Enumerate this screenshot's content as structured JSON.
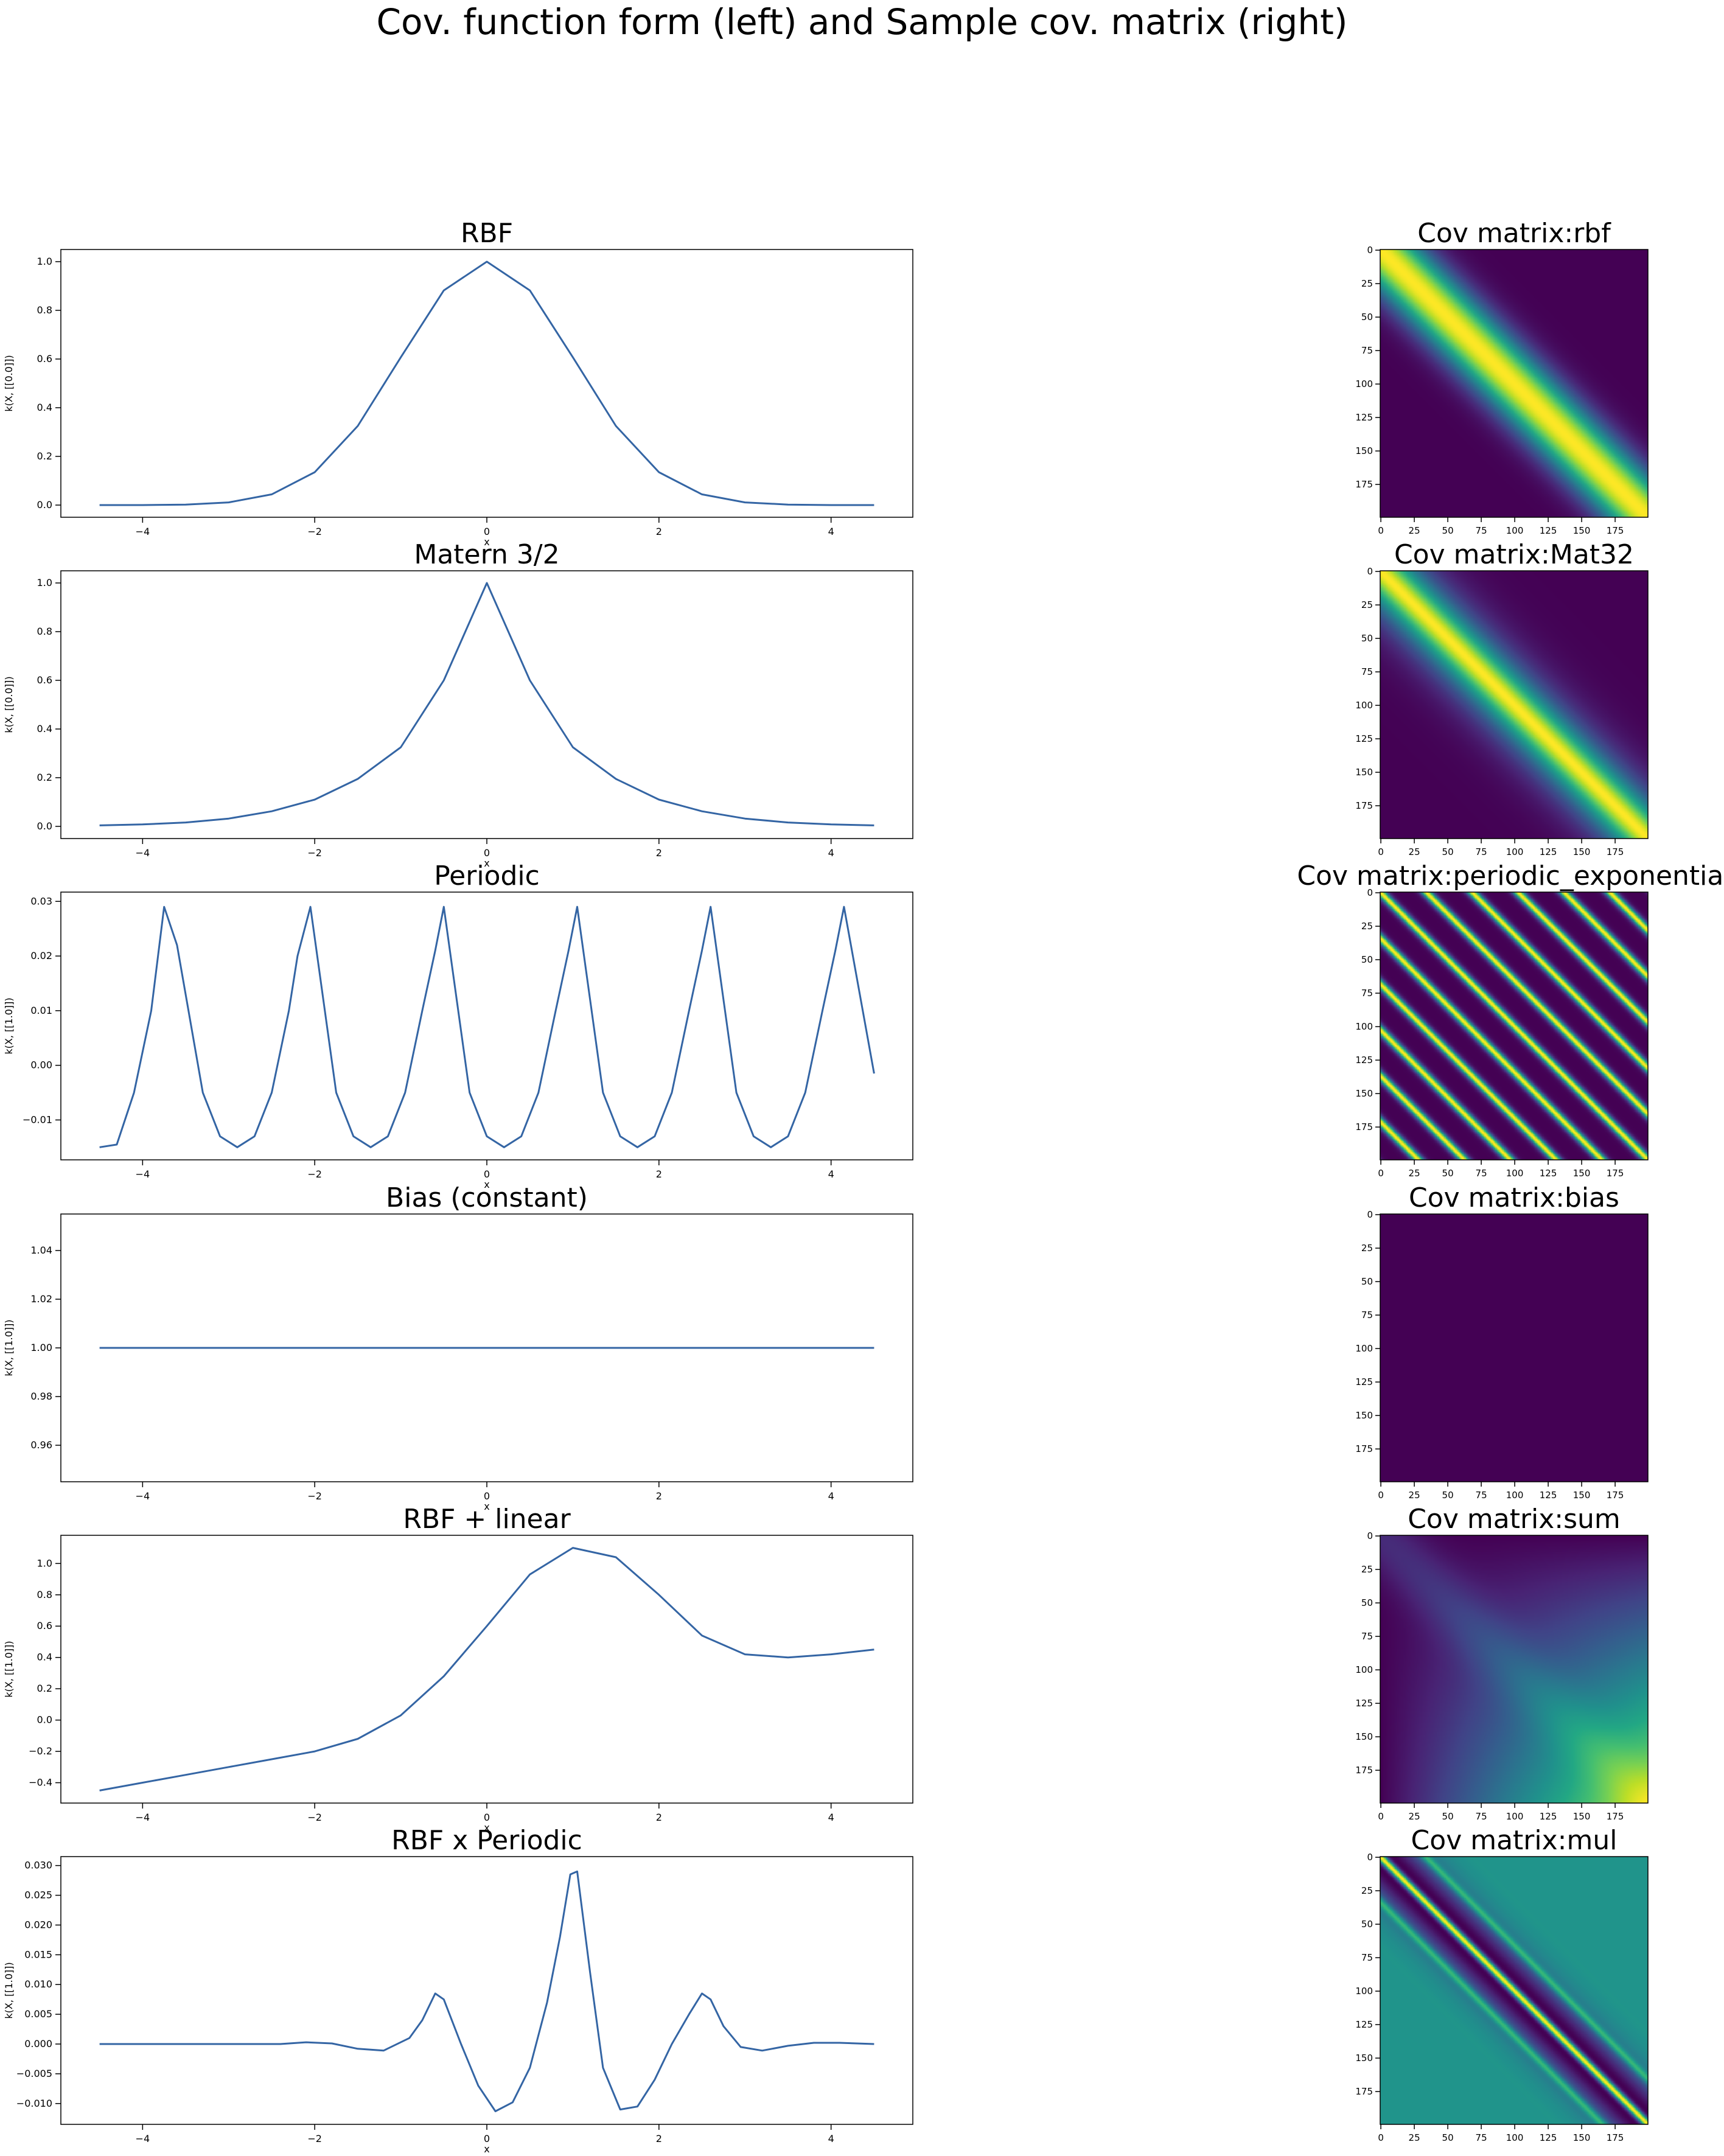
{
  "figure": {
    "suptitle": "Cov. function form (left) and Sample cov. matrix (right)"
  },
  "colors": {
    "line": "#3465a4",
    "axis": "#000000",
    "viridis_low": "#440154",
    "viridis_high": "#fde725"
  },
  "chart_data": [
    {
      "type": "line",
      "title": "RBF",
      "xlabel": "x",
      "ylabel": "k(X, [[0.0]])",
      "x_range": [
        -4.5,
        4.5
      ],
      "xlim": [
        -4.95,
        4.95
      ],
      "ylim": [
        -0.05,
        1.05
      ],
      "xticks": [
        -4,
        -2,
        0,
        2,
        4
      ],
      "yticks": [
        0.0,
        0.2,
        0.4,
        0.6,
        0.8,
        1.0
      ],
      "ytick_labels": [
        "0.0",
        "0.2",
        "0.4",
        "0.6",
        "0.8",
        "1.0"
      ],
      "x": [
        -4.5,
        -4.0,
        -3.5,
        -3.0,
        -2.5,
        -2.0,
        -1.5,
        -1.0,
        -0.5,
        0.0,
        0.5,
        1.0,
        1.5,
        2.0,
        2.5,
        3.0,
        3.5,
        4.0,
        4.5
      ],
      "y": [
        0.0,
        0.0,
        0.002,
        0.011,
        0.044,
        0.135,
        0.325,
        0.607,
        0.882,
        1.0,
        0.882,
        0.607,
        0.325,
        0.135,
        0.044,
        0.011,
        0.002,
        0.0,
        0.0
      ]
    },
    {
      "type": "line",
      "title": "Matern 3/2",
      "xlabel": "x",
      "ylabel": "k(X, [[0.0]])",
      "x_range": [
        -4.5,
        4.5
      ],
      "xlim": [
        -4.95,
        4.95
      ],
      "ylim": [
        -0.05,
        1.05
      ],
      "xticks": [
        -4,
        -2,
        0,
        2,
        4
      ],
      "yticks": [
        0.0,
        0.2,
        0.4,
        0.6,
        0.8,
        1.0
      ],
      "ytick_labels": [
        "0.0",
        "0.2",
        "0.4",
        "0.6",
        "0.8",
        "1.0"
      ],
      "x": [
        -4.5,
        -4.0,
        -3.5,
        -3.0,
        -2.5,
        -2.0,
        -1.5,
        -1.0,
        -0.5,
        0.0,
        0.5,
        1.0,
        1.5,
        2.0,
        2.5,
        3.0,
        3.5,
        4.0,
        4.5
      ],
      "y": [
        0.004,
        0.008,
        0.016,
        0.032,
        0.062,
        0.11,
        0.195,
        0.325,
        0.6,
        1.0,
        0.6,
        0.325,
        0.195,
        0.11,
        0.062,
        0.032,
        0.016,
        0.008,
        0.004
      ]
    },
    {
      "type": "line",
      "title": "Periodic",
      "xlabel": "x",
      "ylabel": "k(X, [[1.0]])",
      "x_range": [
        -4.5,
        4.5
      ],
      "xlim": [
        -4.95,
        4.95
      ],
      "ylim": [
        -0.0173,
        0.0317
      ],
      "xticks": [
        -4,
        -2,
        0,
        2,
        4
      ],
      "yticks": [
        -0.01,
        0.0,
        0.01,
        0.02,
        0.03
      ],
      "ytick_labels": [
        "−0.01",
        "0.00",
        "0.01",
        "0.02",
        "0.03"
      ],
      "x": [
        -4.5,
        -4.3,
        -4.1,
        -3.9,
        -3.75,
        -3.6,
        -3.3,
        -3.1,
        -2.9,
        -2.7,
        -2.5,
        -2.3,
        -2.2,
        -2.05,
        -1.75,
        -1.55,
        -1.35,
        -1.15,
        -0.95,
        -0.75,
        -0.6,
        -0.5,
        -0.2,
        0.0,
        0.2,
        0.4,
        0.6,
        0.8,
        0.95,
        1.05,
        1.35,
        1.55,
        1.75,
        1.95,
        2.15,
        2.35,
        2.5,
        2.6,
        2.9,
        3.1,
        3.3,
        3.5,
        3.7,
        3.9,
        4.05,
        4.15,
        4.5
      ],
      "y": [
        -0.015,
        -0.0145,
        -0.005,
        0.01,
        0.029,
        0.022,
        -0.005,
        -0.013,
        -0.015,
        -0.013,
        -0.005,
        0.01,
        0.02,
        0.029,
        -0.005,
        -0.013,
        -0.015,
        -0.013,
        -0.005,
        0.01,
        0.021,
        0.029,
        -0.005,
        -0.013,
        -0.015,
        -0.013,
        -0.005,
        0.01,
        0.021,
        0.029,
        -0.005,
        -0.013,
        -0.015,
        -0.013,
        -0.005,
        0.01,
        0.021,
        0.029,
        -0.005,
        -0.013,
        -0.015,
        -0.013,
        -0.005,
        0.01,
        0.021,
        0.029,
        -0.0015
      ]
    },
    {
      "type": "line",
      "title": "Bias (constant)",
      "xlabel": "x",
      "ylabel": "k(X, [[1.0]])",
      "x_range": [
        -4.5,
        4.5
      ],
      "xlim": [
        -4.95,
        4.95
      ],
      "ylim": [
        0.945,
        1.055
      ],
      "xticks": [
        -4,
        -2,
        0,
        2,
        4
      ],
      "yticks": [
        0.96,
        0.98,
        1.0,
        1.02,
        1.04
      ],
      "ytick_labels": [
        "0.96",
        "0.98",
        "1.00",
        "1.02",
        "1.04"
      ],
      "x": [
        -4.5,
        4.5
      ],
      "y": [
        1.0,
        1.0
      ]
    },
    {
      "type": "line",
      "title": "RBF + linear",
      "xlabel": "x",
      "ylabel": "k(X, [[1.0]])",
      "x_range": [
        -4.5,
        4.5
      ],
      "xlim": [
        -4.95,
        4.95
      ],
      "ylim": [
        -0.53,
        1.18
      ],
      "xticks": [
        -4,
        -2,
        0,
        2,
        4
      ],
      "yticks": [
        -0.4,
        -0.2,
        0.0,
        0.2,
        0.4,
        0.6,
        0.8,
        1.0
      ],
      "ytick_labels": [
        "−0.4",
        "−0.2",
        "0.0",
        "0.2",
        "0.4",
        "0.6",
        "0.8",
        "1.0"
      ],
      "x": [
        -4.5,
        -4.0,
        -3.5,
        -3.0,
        -2.5,
        -2.0,
        -1.5,
        -1.0,
        -0.5,
        0.0,
        0.5,
        1.0,
        1.5,
        2.0,
        2.5,
        3.0,
        3.5,
        4.0,
        4.5
      ],
      "y": [
        -0.45,
        -0.4,
        -0.35,
        -0.3,
        -0.25,
        -0.2,
        -0.12,
        0.03,
        0.28,
        0.6,
        0.93,
        1.1,
        1.04,
        0.8,
        0.54,
        0.42,
        0.4,
        0.42,
        0.45
      ]
    },
    {
      "type": "line",
      "title": "RBF x Periodic",
      "xlabel": "x",
      "ylabel": "k(X, [[1.0]])",
      "x_range": [
        -4.5,
        4.5
      ],
      "xlim": [
        -4.95,
        4.95
      ],
      "ylim": [
        -0.0135,
        0.0315
      ],
      "xticks": [
        -4,
        -2,
        0,
        2,
        4
      ],
      "yticks": [
        -0.01,
        -0.005,
        0.0,
        0.005,
        0.01,
        0.015,
        0.02,
        0.025,
        0.03
      ],
      "ytick_labels": [
        "−0.010",
        "−0.005",
        "0.000",
        "0.005",
        "0.010",
        "0.015",
        "0.020",
        "0.025",
        "0.030"
      ],
      "x": [
        -4.5,
        -3.0,
        -2.4,
        -2.1,
        -1.8,
        -1.5,
        -1.2,
        -0.9,
        -0.75,
        -0.6,
        -0.5,
        -0.3,
        -0.1,
        0.1,
        0.3,
        0.5,
        0.7,
        0.85,
        0.97,
        1.05,
        1.2,
        1.35,
        1.55,
        1.75,
        1.95,
        2.15,
        2.35,
        2.5,
        2.6,
        2.75,
        2.95,
        3.2,
        3.5,
        3.8,
        4.1,
        4.5
      ],
      "y": [
        0.0,
        0.0,
        0.0,
        0.0003,
        0.0001,
        -0.0008,
        -0.0011,
        0.001,
        0.004,
        0.0085,
        0.0075,
        0.0,
        -0.007,
        -0.0113,
        -0.0098,
        -0.004,
        0.007,
        0.018,
        0.0285,
        0.029,
        0.012,
        -0.004,
        -0.011,
        -0.0105,
        -0.006,
        0.0,
        0.005,
        0.0085,
        0.0075,
        0.003,
        -0.0005,
        -0.0011,
        -0.0003,
        0.0002,
        0.0002,
        0.0
      ]
    },
    {
      "type": "heatmap",
      "title": "Cov matrix:rbf",
      "kind": "rbf",
      "n": 200,
      "colormap": "viridis",
      "ticks": [
        0,
        25,
        50,
        75,
        100,
        125,
        150,
        175
      ]
    },
    {
      "type": "heatmap",
      "title": "Cov matrix:Mat32",
      "kind": "mat32",
      "n": 200,
      "colormap": "viridis",
      "ticks": [
        0,
        25,
        50,
        75,
        100,
        125,
        150,
        175
      ]
    },
    {
      "type": "heatmap",
      "title": "Cov matrix:periodic_exponential",
      "kind": "periodic",
      "n": 200,
      "colormap": "viridis",
      "ticks": [
        0,
        25,
        50,
        75,
        100,
        125,
        150,
        175
      ]
    },
    {
      "type": "heatmap",
      "title": "Cov matrix:bias",
      "kind": "bias",
      "n": 200,
      "colormap": "viridis",
      "ticks": [
        0,
        25,
        50,
        75,
        100,
        125,
        150,
        175
      ]
    },
    {
      "type": "heatmap",
      "title": "Cov matrix:sum",
      "kind": "sum",
      "n": 200,
      "colormap": "viridis",
      "ticks": [
        0,
        25,
        50,
        75,
        100,
        125,
        150,
        175
      ]
    },
    {
      "type": "heatmap",
      "title": "Cov matrix:mul",
      "kind": "mul",
      "n": 200,
      "colormap": "viridis",
      "ticks": [
        0,
        25,
        50,
        75,
        100,
        125,
        150,
        175
      ]
    }
  ]
}
